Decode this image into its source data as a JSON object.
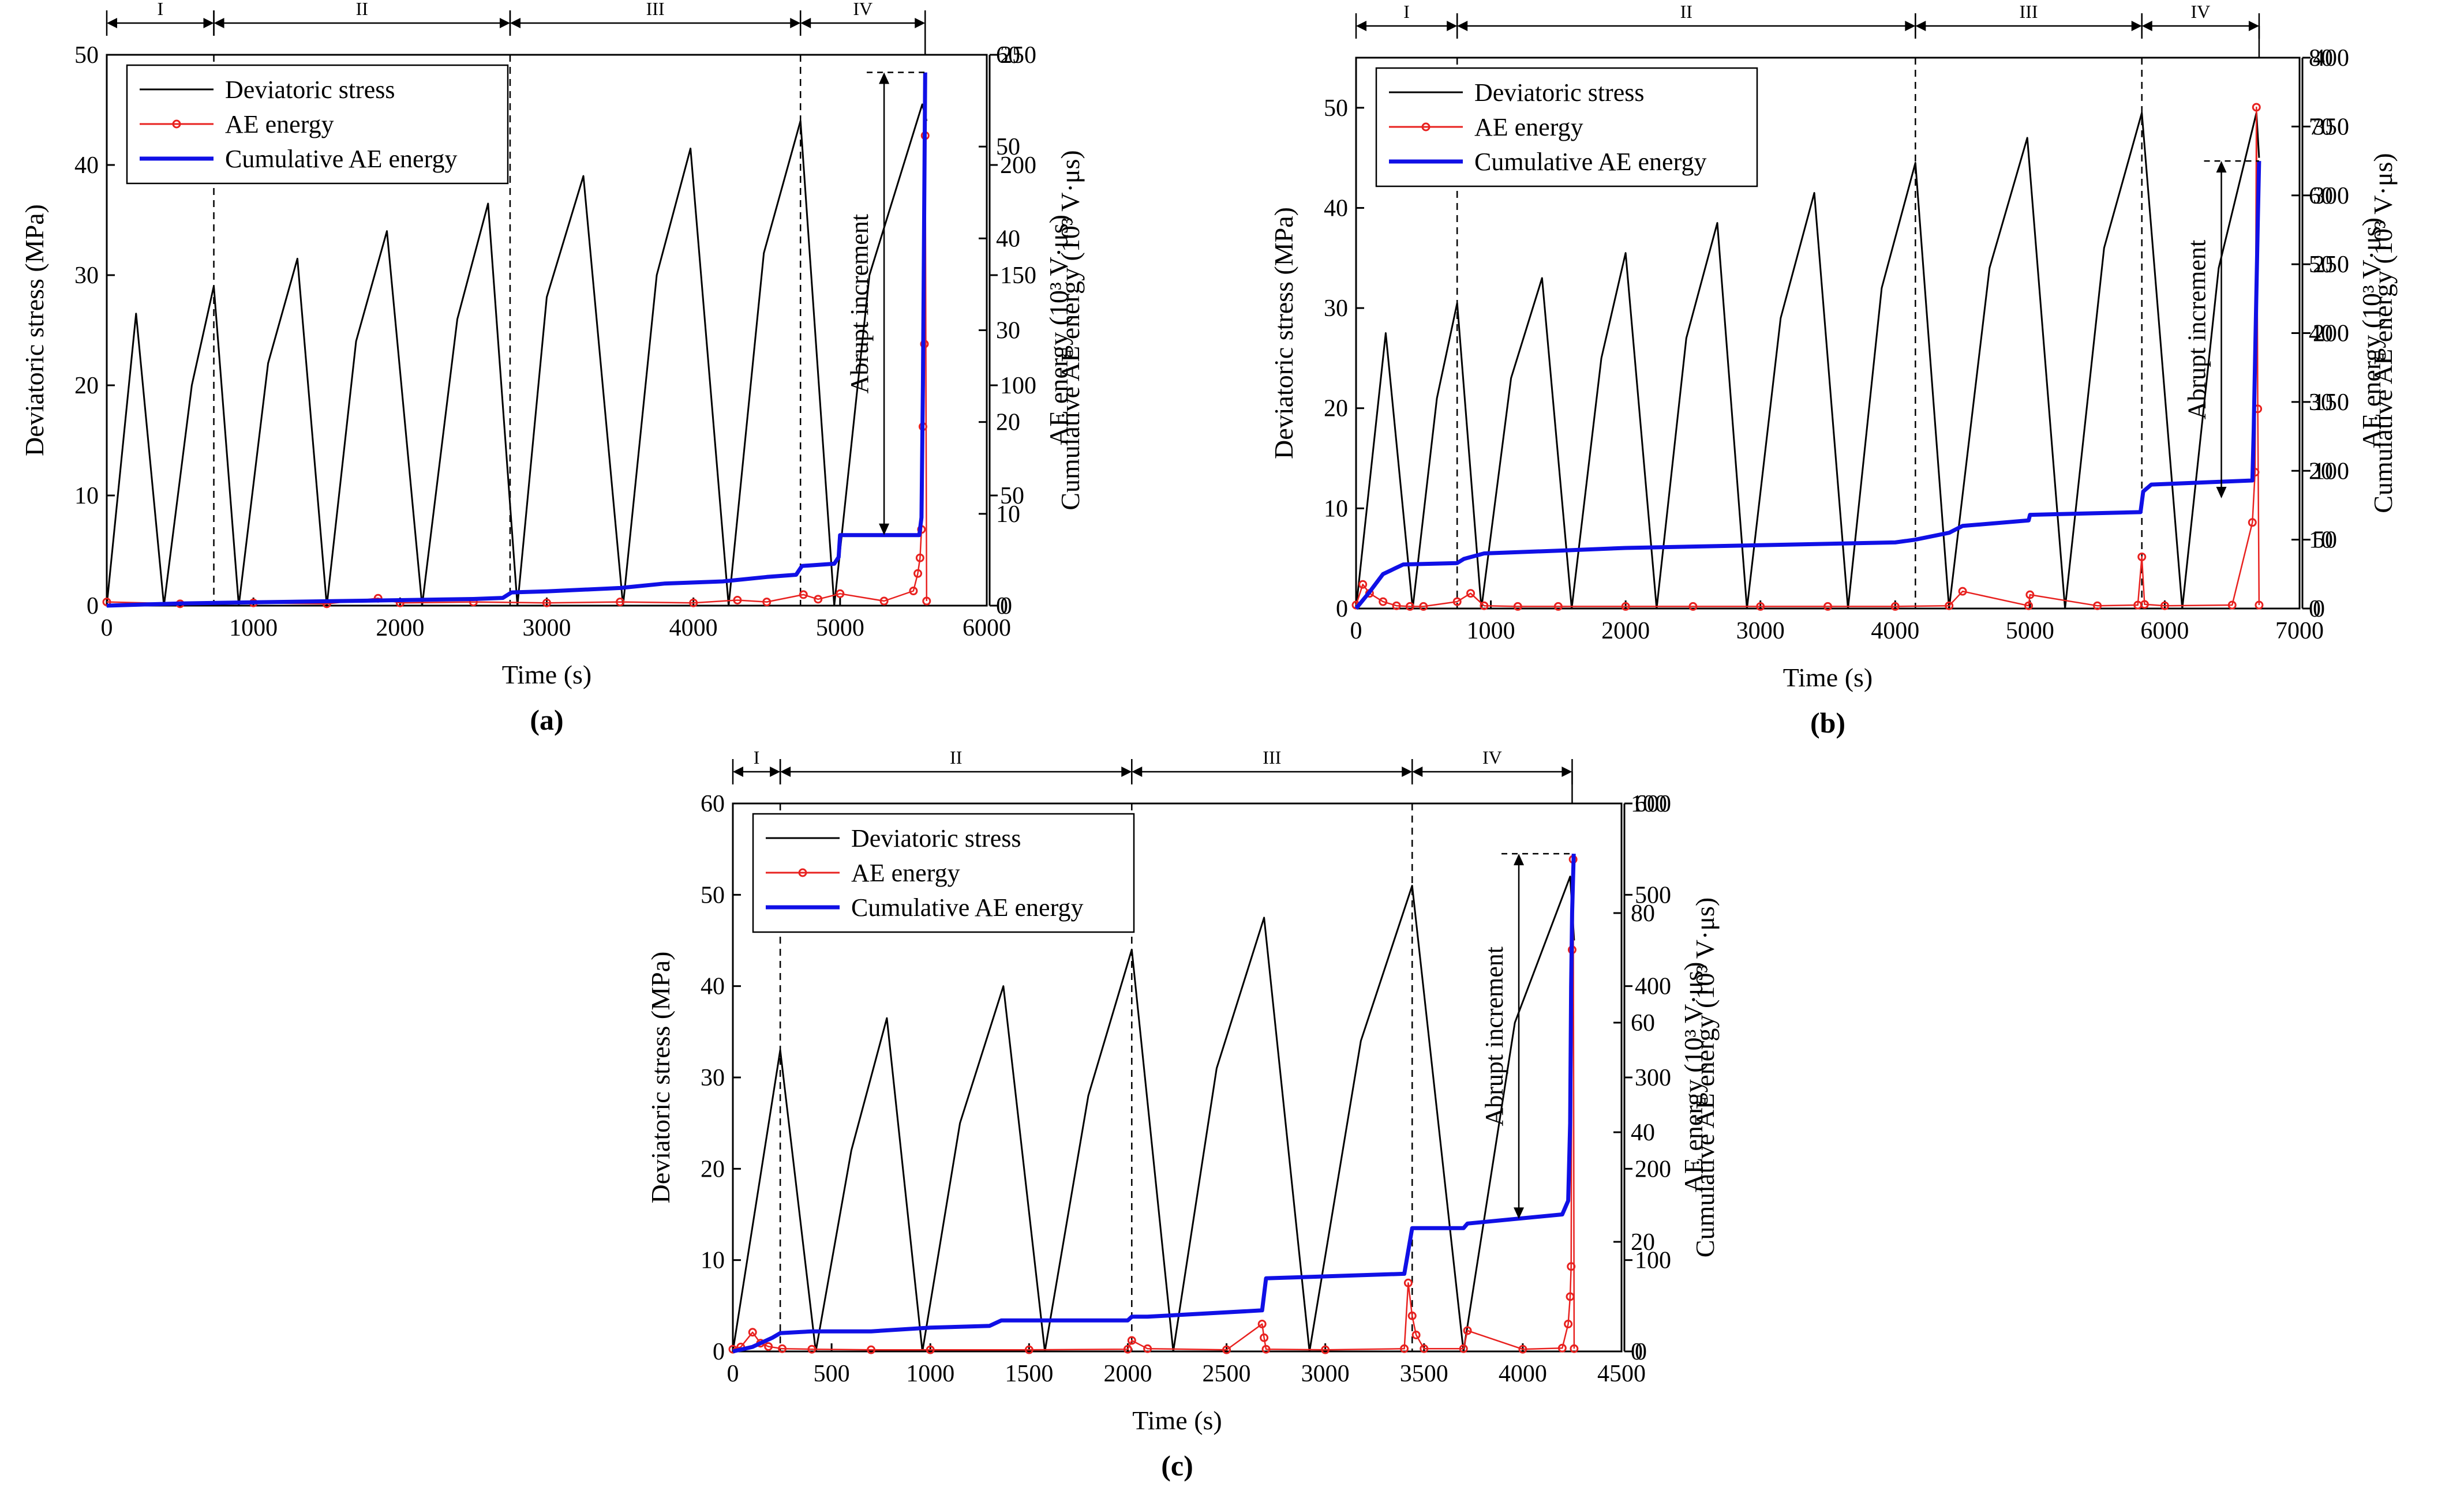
{
  "figure": {
    "series_names": [
      "Deviatoric stress",
      "AE energy",
      "Cumulative AE energy"
    ],
    "colors": {
      "stress": "#000000",
      "ae": "#e8211f",
      "cum": "#1010e6"
    }
  },
  "chart_data": [
    {
      "id": "a",
      "type": "line",
      "panel_label": "(a)",
      "xlabel": "Time (s)",
      "ylabel": "Deviatoric stress (MPa)",
      "y2label": "AE energy (10³ V·μs)",
      "y3label": "Cumulative AE energy (10³ V·μs)",
      "xlim": [
        0,
        6000
      ],
      "ylim": [
        0,
        50
      ],
      "y2lim": [
        0,
        60
      ],
      "y3lim": [
        0,
        250
      ],
      "xticks": [
        0,
        1000,
        2000,
        3000,
        4000,
        5000,
        6000
      ],
      "yticks": [
        0,
        10,
        20,
        30,
        40,
        50
      ],
      "y2ticks": [
        0,
        10,
        20,
        30,
        40,
        50,
        60
      ],
      "y3ticks": [
        0,
        50,
        100,
        150,
        200,
        250
      ],
      "stages": [
        {
          "label": "I",
          "from": 0,
          "to": 730
        },
        {
          "label": "II",
          "from": 730,
          "to": 2750
        },
        {
          "label": "III",
          "from": 2750,
          "to": 4730
        },
        {
          "label": "IV",
          "from": 4730,
          "to": 5580
        }
      ],
      "annotation": {
        "text": "Abrupt increment",
        "x": 5300,
        "y_low": 32,
        "y_high": 242
      },
      "series": [
        {
          "name": "Deviatoric stress",
          "axis": "left",
          "color": "#000000",
          "x": [
            0,
            200,
            390,
            580,
            730,
            900,
            1100,
            1300,
            1500,
            1700,
            1910,
            2150,
            2390,
            2600,
            2800,
            3000,
            3250,
            3520,
            3750,
            3980,
            4240,
            4480,
            4730,
            4960,
            5200,
            5560,
            5590
          ],
          "values": [
            0,
            26.5,
            0,
            20,
            29,
            0,
            22,
            31.5,
            0,
            24,
            34,
            0,
            26,
            36.5,
            0,
            28,
            39,
            0,
            30,
            41.5,
            0,
            32,
            44,
            0,
            30,
            45.5,
            44
          ]
        },
        {
          "name": "AE energy",
          "axis": "right",
          "color": "#e8211f",
          "x": [
            0,
            500,
            1000,
            1500,
            1850,
            2000,
            2500,
            3000,
            3500,
            4000,
            4300,
            4500,
            4750,
            4850,
            5000,
            5300,
            5500,
            5530,
            5545,
            5555,
            5565,
            5575,
            5580,
            5590
          ],
          "values": [
            0.4,
            0.2,
            0.3,
            0.2,
            0.8,
            0.3,
            0.4,
            0.3,
            0.4,
            0.3,
            0.6,
            0.4,
            1.2,
            0.7,
            1.3,
            0.5,
            1.6,
            3.5,
            5.2,
            8.3,
            19.5,
            28.5,
            51.2,
            0.5
          ]
        },
        {
          "name": "Cumulative AE energy",
          "axis": "right2",
          "color": "#1010e6",
          "x": [
            0,
            500,
            1000,
            1500,
            2000,
            2500,
            2700,
            2760,
            3000,
            3500,
            3800,
            4200,
            4500,
            4700,
            4740,
            4960,
            4990,
            5000,
            5540,
            5555,
            5565,
            5580
          ],
          "values": [
            0,
            1,
            1.5,
            2,
            2.5,
            3,
            3.5,
            6,
            6.5,
            8,
            10,
            11,
            13,
            14,
            18,
            19,
            22,
            32,
            32,
            40,
            100,
            242
          ]
        }
      ]
    },
    {
      "id": "b",
      "type": "line",
      "panel_label": "(b)",
      "xlabel": "Time (s)",
      "ylabel": "Deviatoric stress (MPa)",
      "y2label": "AE energy (10³ V·μs)",
      "y3label": "Cumulative AE energy (10³ V·μs)",
      "xlim": [
        0,
        7000
      ],
      "ylim": [
        0,
        55
      ],
      "y2lim": [
        0,
        80
      ],
      "y3lim": [
        0,
        400
      ],
      "xticks": [
        0,
        1000,
        2000,
        3000,
        4000,
        5000,
        6000,
        7000
      ],
      "yticks": [
        0,
        10,
        20,
        30,
        40,
        50
      ],
      "y2ticks": [
        0,
        10,
        20,
        30,
        40,
        50,
        60,
        70,
        80
      ],
      "y3ticks": [
        0,
        50,
        100,
        150,
        200,
        250,
        300,
        350,
        400
      ],
      "stages": [
        {
          "label": "I",
          "from": 0,
          "to": 750
        },
        {
          "label": "II",
          "from": 750,
          "to": 4150
        },
        {
          "label": "III",
          "from": 4150,
          "to": 5830
        },
        {
          "label": "IV",
          "from": 5830,
          "to": 6700
        }
      ],
      "annotation": {
        "text": "Abrupt increment",
        "x": 6420,
        "y_low": 80,
        "y_high": 325
      },
      "series": [
        {
          "name": "Deviatoric stress",
          "axis": "left",
          "color": "#000000",
          "x": [
            0,
            220,
            420,
            600,
            750,
            930,
            1150,
            1380,
            1600,
            1820,
            2000,
            2230,
            2450,
            2680,
            2900,
            3150,
            3400,
            3650,
            3900,
            4150,
            4400,
            4700,
            4980,
            5260,
            5550,
            5830,
            6130,
            6400,
            6680,
            6700
          ],
          "values": [
            0,
            27.5,
            0,
            21,
            30.5,
            0,
            23,
            33,
            0,
            25,
            35.5,
            0,
            27,
            38.5,
            0,
            29,
            41.5,
            0,
            32,
            44.5,
            0,
            34,
            47,
            0,
            36,
            49.5,
            0,
            34,
            49.5,
            45
          ]
        },
        {
          "name": "AE energy",
          "axis": "right",
          "color": "#e8211f",
          "x": [
            0,
            50,
            100,
            200,
            300,
            400,
            500,
            750,
            850,
            950,
            1200,
            1500,
            2000,
            2500,
            3000,
            3500,
            4000,
            4400,
            4500,
            4990,
            5000,
            5500,
            5800,
            5830,
            5850,
            6000,
            6500,
            6650,
            6670,
            6680,
            6690,
            6700
          ],
          "values": [
            0.5,
            3.5,
            2.2,
            1,
            0.4,
            0.3,
            0.3,
            1,
            2.2,
            0.4,
            0.3,
            0.3,
            0.3,
            0.3,
            0.3,
            0.3,
            0.3,
            0.4,
            2.5,
            0.4,
            2,
            0.4,
            0.5,
            7.5,
            0.6,
            0.4,
            0.5,
            12.5,
            19.8,
            72.8,
            29,
            0.5
          ]
        },
        {
          "name": "Cumulative AE energy",
          "axis": "right2",
          "color": "#1010e6",
          "x": [
            0,
            100,
            200,
            350,
            750,
            800,
            950,
            1500,
            2000,
            3000,
            4000,
            4150,
            4400,
            4500,
            4990,
            5000,
            5820,
            5840,
            5900,
            6650,
            6660,
            6670,
            6690,
            6700
          ],
          "values": [
            0,
            12,
            25,
            32,
            33,
            36,
            40,
            42,
            44,
            46,
            48,
            50,
            55,
            60,
            64,
            68,
            70,
            85,
            90,
            93,
            130,
            180,
            280,
            325
          ]
        }
      ]
    },
    {
      "id": "c",
      "type": "line",
      "panel_label": "(c)",
      "xlabel": "Time (s)",
      "ylabel": "Deviatoric stress (MPa)",
      "y2label": "AE energy (10³ V·μs)",
      "y3label": "Cumulative AE energy (10³ V·μs)",
      "xlim": [
        0,
        4500
      ],
      "ylim": [
        0,
        60
      ],
      "y2lim": [
        0,
        100
      ],
      "y3lim": [
        0,
        600
      ],
      "xticks": [
        0,
        500,
        1000,
        1500,
        2000,
        2500,
        3000,
        3500,
        4000,
        4500
      ],
      "yticks": [
        0,
        10,
        20,
        30,
        40,
        50,
        60
      ],
      "y2ticks": [
        0,
        20,
        40,
        60,
        80,
        100
      ],
      "y3ticks": [
        0,
        100,
        200,
        300,
        400,
        500,
        600
      ],
      "stages": [
        {
          "label": "I",
          "from": 0,
          "to": 240
        },
        {
          "label": "II",
          "from": 240,
          "to": 2020
        },
        {
          "label": "III",
          "from": 2020,
          "to": 3440
        },
        {
          "label": "IV",
          "from": 3440,
          "to": 4250
        }
      ],
      "annotation": {
        "text": "Abrupt increment",
        "x": 3980,
        "y_low": 145,
        "y_high": 545
      },
      "series": [
        {
          "name": "Deviatoric stress",
          "axis": "left",
          "color": "#000000",
          "x": [
            0,
            240,
            420,
            600,
            780,
            960,
            1150,
            1370,
            1580,
            1800,
            2020,
            2230,
            2450,
            2690,
            2920,
            3180,
            3440,
            3700,
            3960,
            4240,
            4260
          ],
          "values": [
            0,
            33,
            0,
            22,
            36.5,
            0,
            25,
            40,
            0,
            28,
            44,
            0,
            31,
            47.5,
            0,
            34,
            51,
            0,
            36,
            52,
            45
          ]
        },
        {
          "name": "AE energy",
          "axis": "right",
          "color": "#e8211f",
          "x": [
            0,
            40,
            100,
            140,
            180,
            250,
            400,
            700,
            1000,
            1500,
            2000,
            2020,
            2100,
            2500,
            2680,
            2690,
            2700,
            3000,
            3400,
            3420,
            3440,
            3460,
            3500,
            3700,
            3720,
            4000,
            4200,
            4230,
            4240,
            4245,
            4250,
            4255,
            4260
          ],
          "values": [
            0.4,
            0.8,
            3.5,
            1.5,
            0.9,
            0.5,
            0.4,
            0.3,
            0.3,
            0.3,
            0.4,
            2,
            0.5,
            0.3,
            5,
            2.5,
            0.4,
            0.3,
            0.5,
            12.5,
            6.5,
            3,
            0.5,
            0.5,
            3.8,
            0.4,
            0.6,
            5,
            10,
            15.5,
            73.3,
            89.8,
            0.5
          ]
        },
        {
          "name": "Cumulative AE energy",
          "axis": "right2",
          "color": "#1010e6",
          "x": [
            0,
            100,
            200,
            240,
            400,
            700,
            1000,
            1300,
            1360,
            2000,
            2020,
            2100,
            2680,
            2700,
            3400,
            3440,
            3700,
            3720,
            4200,
            4230,
            4240,
            4245,
            4250,
            4258
          ],
          "values": [
            0,
            5,
            15,
            20,
            22,
            22,
            26,
            28,
            34,
            34,
            38,
            38,
            45,
            80,
            85,
            135,
            135,
            140,
            150,
            165,
            250,
            400,
            480,
            545
          ]
        }
      ]
    }
  ]
}
